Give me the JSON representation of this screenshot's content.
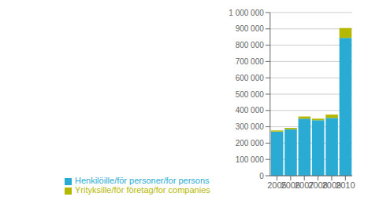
{
  "chart_data": {
    "type": "bar",
    "stacked": true,
    "categories": [
      "2005",
      "2006",
      "2007",
      "2008",
      "2009",
      "2010"
    ],
    "series": [
      {
        "name": "Henkilöille/för personer/for persons",
        "color": "#29ABD4",
        "values": [
          270000,
          285000,
          350000,
          340000,
          355000,
          845000
        ]
      },
      {
        "name": "Yrityksille/för företag/for companies",
        "color": "#B5B800",
        "values": [
          8000,
          8000,
          13000,
          10000,
          20000,
          60000
        ]
      }
    ],
    "ylim": [
      0,
      1000000
    ],
    "yticks": [
      0,
      {
        "value": 100000,
        "label": "100 000"
      },
      {
        "value": 200000,
        "label": "200 000"
      },
      {
        "value": 300000,
        "label": "300 000"
      },
      {
        "value": 400000,
        "label": "400 000"
      },
      {
        "value": 500000,
        "label": "500 000"
      },
      {
        "value": 600000,
        "label": "600 000"
      },
      {
        "value": 700000,
        "label": "700 000"
      },
      {
        "value": 800000,
        "label": "800 000"
      },
      {
        "value": 900000,
        "label": "900 000"
      },
      {
        "value": 1000000,
        "label": "1 000 000"
      }
    ],
    "grid": true,
    "legend": "bottom"
  }
}
